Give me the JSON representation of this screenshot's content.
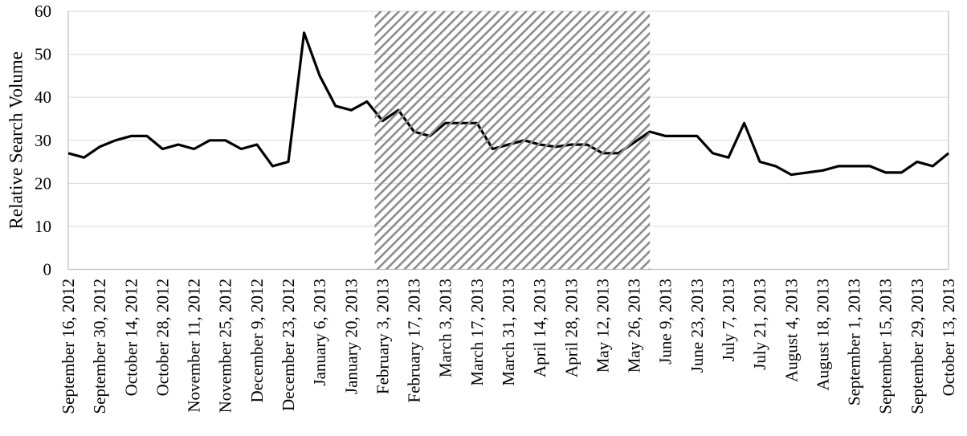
{
  "chart_data": {
    "type": "line",
    "title": "",
    "ylabel": "Relative Search Volume",
    "xlabel": "",
    "ylim": [
      0,
      60
    ],
    "y_ticks": [
      0,
      10,
      20,
      30,
      40,
      50,
      60
    ],
    "grid": "horizontal-every-10",
    "legend_position": "none",
    "line_style": "solid-black",
    "x_tick_labels": [
      "September 16, 2012",
      "September 30, 2012",
      "October 14, 2012",
      "October 28, 2012",
      "November 11, 2012",
      "November 25, 2012",
      "December 9, 2012",
      "December 23, 2012",
      "January 6, 2013",
      "January 20, 2013",
      "February 3, 2013",
      "February 17, 2013",
      "March 3, 2013",
      "March 17, 2013",
      "March 31, 2013",
      "April 14, 2013",
      "April 28, 2013",
      "May 12, 2013",
      "May 26, 2013",
      "June 9, 2013",
      "June 23, 2013",
      "July 7, 2013",
      "July 21, 2013",
      "August 4, 2013",
      "August 18, 2013",
      "September 1, 2013",
      "September 15, 2013",
      "September 29, 2013",
      "October 13, 2013"
    ],
    "x_tick_label_interval_weeks": 2,
    "x": [
      "September 16, 2012",
      "September 23, 2012",
      "September 30, 2012",
      "October 7, 2012",
      "October 14, 2012",
      "October 21, 2012",
      "October 28, 2012",
      "November 4, 2012",
      "November 11, 2012",
      "November 18, 2012",
      "November 25, 2012",
      "December 2, 2012",
      "December 9, 2012",
      "December 16, 2012",
      "December 23, 2012",
      "December 30, 2012",
      "January 6, 2013",
      "January 13, 2013",
      "January 20, 2013",
      "January 27, 2013",
      "February 3, 2013",
      "February 10, 2013",
      "February 17, 2013",
      "February 24, 2013",
      "March 3, 2013",
      "March 10, 2013",
      "March 17, 2013",
      "March 24, 2013",
      "March 31, 2013",
      "April 7, 2013",
      "April 14, 2013",
      "April 21, 2013",
      "April 28, 2013",
      "May 5, 2013",
      "May 12, 2013",
      "May 19, 2013",
      "May 26, 2013",
      "June 2, 2013",
      "June 9, 2013",
      "June 16, 2013",
      "June 23, 2013",
      "June 30, 2013",
      "July 7, 2013",
      "July 14, 2013",
      "July 21, 2013",
      "July 28, 2013",
      "August 4, 2013",
      "August 11, 2013",
      "August 18, 2013",
      "August 25, 2013",
      "September 1, 2013",
      "September 8, 2013",
      "September 15, 2013",
      "September 22, 2013",
      "September 29, 2013",
      "October 6, 2013",
      "October 13, 2013"
    ],
    "values": [
      27,
      26,
      28.5,
      30,
      31,
      31,
      28,
      29,
      28,
      30,
      30,
      28,
      29,
      24,
      25,
      55,
      45,
      38,
      37,
      39,
      34.5,
      37,
      32,
      31,
      34,
      34,
      34,
      28,
      29,
      30,
      29,
      28.5,
      29,
      29,
      27,
      27,
      29.5,
      32,
      31,
      31,
      31,
      27,
      26,
      34,
      25,
      24,
      22,
      22.5,
      23,
      24,
      24,
      24,
      22.5,
      22.5,
      25,
      24,
      27
    ],
    "highlight_region": {
      "style": "diagonal-hatch",
      "direction": "bottom-left-to-top-right",
      "start_week": "February 3, 2013",
      "end_week": "June 2, 2013",
      "start_index": 19.5,
      "end_index": 37
    }
  },
  "colors": {
    "line": "#000000",
    "gridline": "#d9d9d9",
    "axis": "#bfbfbf",
    "hatch": "#8c8c8c",
    "background": "#ffffff",
    "text": "#000000"
  }
}
